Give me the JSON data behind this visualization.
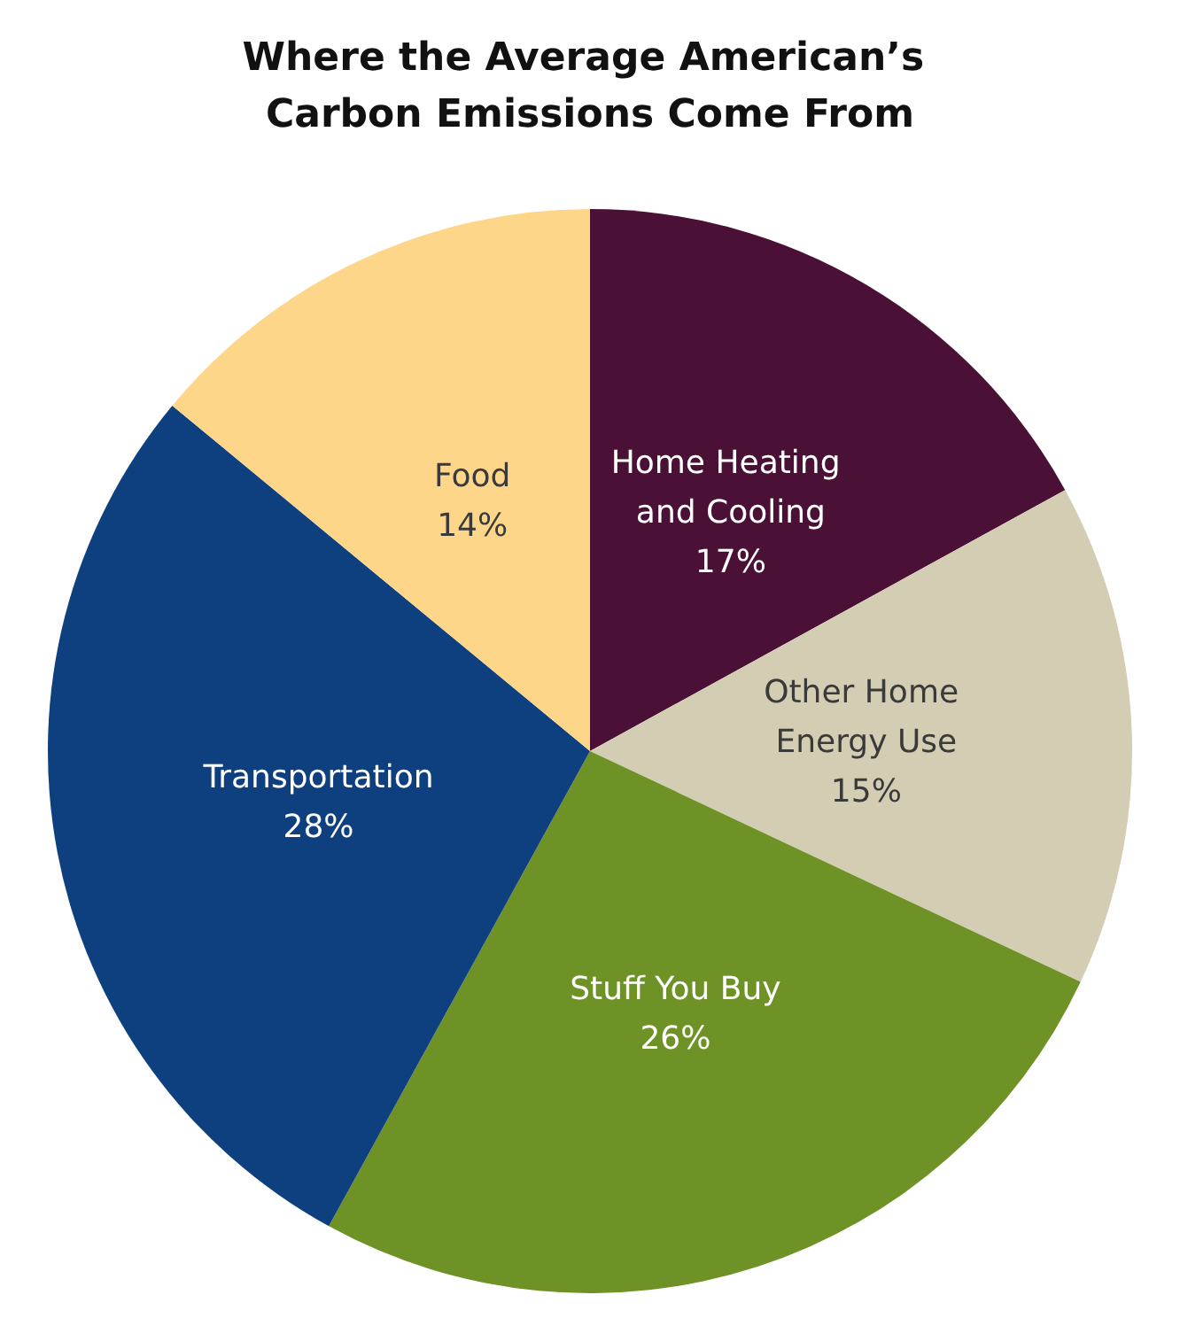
{
  "chart_data": {
    "type": "pie",
    "title": "Where the Average American’s Carbon Emissions Come From",
    "categories": [
      "Home Heating and Cooling",
      "Other Home Energy Use",
      "Stuff You Buy",
      "Transportation",
      "Food"
    ],
    "values": [
      17,
      15,
      26,
      28,
      14
    ],
    "value_labels": [
      "17%",
      "15%",
      "26%",
      "28%",
      "14%"
    ],
    "colors": [
      "#4a1036",
      "#d3cdb3",
      "#6e9226",
      "#0e3f7e",
      "#fdd68a"
    ],
    "legend": false
  }
}
